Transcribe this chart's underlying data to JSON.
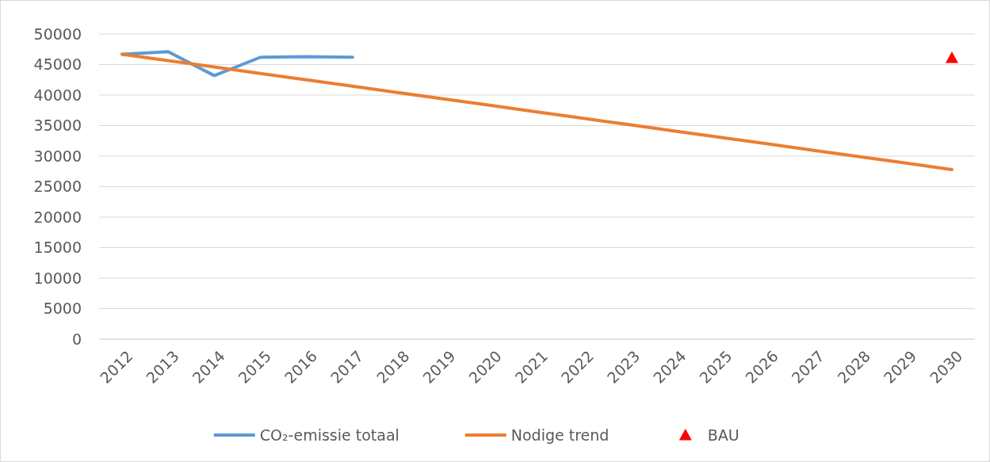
{
  "chart_data": {
    "type": "line",
    "categories": [
      "2012",
      "2013",
      "2014",
      "2015",
      "2016",
      "2017",
      "2018",
      "2019",
      "2020",
      "2021",
      "2022",
      "2023",
      "2024",
      "2025",
      "2026",
      "2027",
      "2028",
      "2029",
      "2030"
    ],
    "series": [
      {
        "name": "CO₂-emissie totaal",
        "color": "#5b9bd5",
        "values": [
          46700,
          47100,
          43200,
          46200,
          46300,
          46200,
          null,
          null,
          null,
          null,
          null,
          null,
          null,
          null,
          null,
          null,
          null,
          null,
          null
        ]
      },
      {
        "name": "Nodige trend",
        "color": "#ed7d31",
        "values": [
          46700,
          45650,
          44600,
          43550,
          42500,
          41450,
          40400,
          39350,
          38300,
          37250,
          36200,
          35150,
          34100,
          33050,
          32000,
          30950,
          29900,
          28850,
          27800
        ]
      },
      {
        "name": "BAU",
        "type": "scatter",
        "color": "#ff0000",
        "marker": "triangle",
        "values": [
          null,
          null,
          null,
          null,
          null,
          null,
          null,
          null,
          null,
          null,
          null,
          null,
          null,
          null,
          null,
          null,
          null,
          null,
          46100
        ]
      }
    ],
    "ylim": [
      0,
      50000
    ],
    "yticks": [
      0,
      5000,
      10000,
      15000,
      20000,
      25000,
      30000,
      35000,
      40000,
      45000,
      50000
    ],
    "grid": "y",
    "legend": "bottom",
    "marker": "none",
    "line_style": "solid"
  }
}
